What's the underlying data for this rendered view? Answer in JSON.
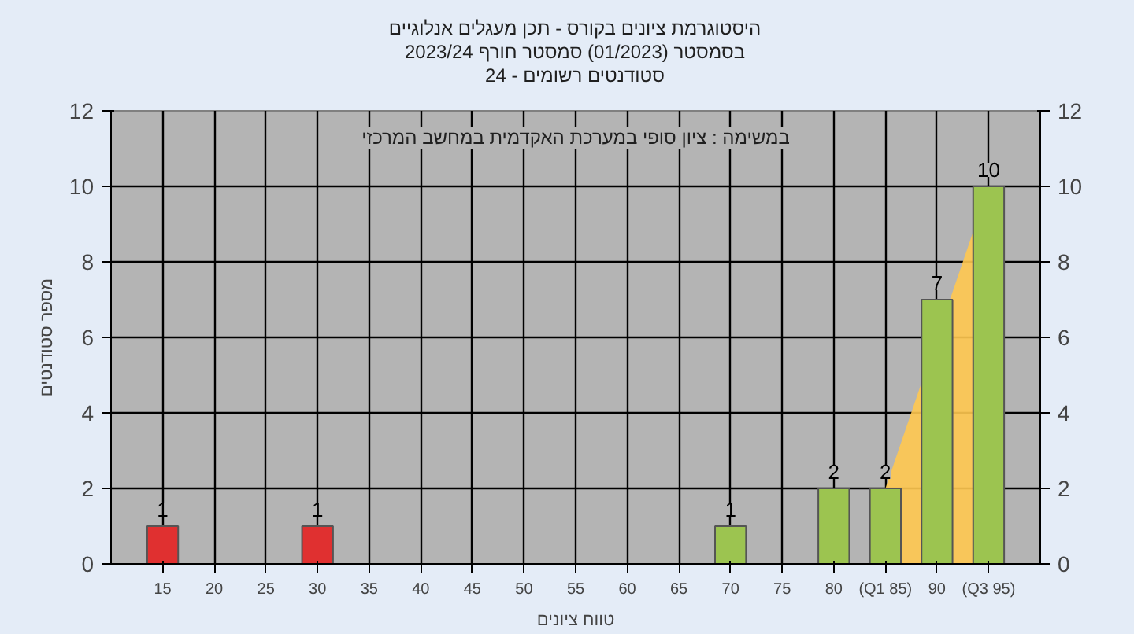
{
  "chart_data": {
    "type": "bar",
    "title": "היסטוגרמת ציונים בקורס - תכן מעגלים אנלוגיים",
    "subtitle": "בסמסטר  (01/2023)  סמסטר חורף 2023/24\nסטודנטים רשומים - 24",
    "xlabel": "טווח ציונים",
    "ylabel": "מספר סטודנטים",
    "annotations": [
      "במשימה : ציון סופי במערכת האקדמית במחשב המרכזי"
    ],
    "x": [
      15,
      30,
      70,
      80,
      85,
      90,
      95
    ],
    "series": [
      {
        "type": "area",
        "color": "#ffc850",
        "x": [
          85,
          95
        ],
        "values": [
          2,
          10
        ],
        "value_labels": [
          null,
          null
        ]
      },
      {
        "colors": [
          "#e03030",
          "#e03030",
          "#9cc450",
          "#9cc450",
          "#9cc450",
          "#9cc450",
          "#9cc450"
        ],
        "values": [
          1,
          1,
          1,
          2,
          2,
          7,
          10
        ]
      }
    ],
    "data_labels": true,
    "xlim": [
      10,
      100
    ],
    "xticks": [
      15,
      20,
      25,
      30,
      35,
      40,
      45,
      50,
      55,
      60,
      65,
      70,
      75,
      80,
      {
        "value": 85,
        "label": "(Q1 85)"
      },
      90,
      {
        "value": 95,
        "label": "(Q3 95)"
      }
    ],
    "ylim": [
      0,
      12
    ],
    "yticks": [
      0,
      2,
      4,
      6,
      8,
      10,
      12
    ],
    "y2lim": [
      0,
      12
    ],
    "y2ticks": [
      0,
      2,
      4,
      6,
      8,
      10,
      12
    ],
    "grid": true
  }
}
